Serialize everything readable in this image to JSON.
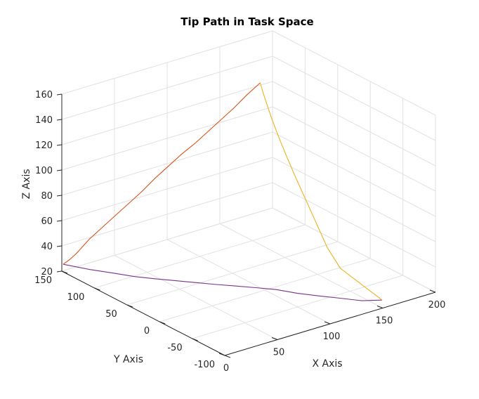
{
  "chart_data": {
    "type": "line",
    "title": "Tip Path in Task Space",
    "xlabel": "X Axis",
    "ylabel": "Y Axis",
    "zlabel": "Z Axis",
    "xlim": [
      0,
      200
    ],
    "ylim": [
      -100,
      150
    ],
    "zlim": [
      20,
      160
    ],
    "x_ticks": [
      0,
      50,
      100,
      150,
      200
    ],
    "y_ticks": [
      -100,
      -50,
      0,
      50,
      100,
      150
    ],
    "z_ticks": [
      20,
      40,
      60,
      80,
      100,
      120,
      140,
      160
    ],
    "grid": true,
    "series": [
      {
        "color": "#7e2f8e",
        "x": [
          0,
          10,
          20,
          30,
          40,
          50,
          60,
          70,
          80,
          90,
          100,
          110,
          120,
          130,
          140,
          150
        ],
        "y": [
          148,
          123,
          103,
          87,
          71,
          56,
          41,
          26,
          12,
          -2,
          -17,
          -34,
          -51,
          -67,
          -84,
          -99
        ],
        "z": [
          26,
          26,
          26,
          25,
          25,
          25,
          25,
          25,
          25,
          25,
          25,
          24,
          24,
          24,
          24,
          26
        ]
      },
      {
        "color": "#d95319",
        "x": [
          0,
          5,
          10,
          15,
          20,
          30,
          40,
          50,
          60,
          70,
          80,
          90,
          100,
          110,
          120,
          130,
          140,
          150
        ],
        "y": [
          148,
          146,
          144,
          142,
          140,
          136,
          132,
          128,
          124,
          120,
          116,
          112,
          108,
          104,
          100,
          96,
          92,
          88
        ],
        "z": [
          26,
          29,
          33,
          38,
          43,
          51,
          59,
          67,
          75,
          84,
          92,
          100,
          107,
          115,
          123,
          131,
          140,
          148
        ]
      },
      {
        "color": "#edb120",
        "x": [
          150,
          150,
          150,
          150,
          150,
          150,
          150,
          150,
          150,
          150,
          150,
          150
        ],
        "y": [
          88,
          84,
          78,
          70,
          60,
          48,
          34,
          18,
          2,
          -15,
          -35,
          -99
        ],
        "z": [
          148,
          142,
          134,
          124,
          113,
          101,
          88,
          74,
          60,
          45,
          34,
          26
        ]
      }
    ]
  }
}
